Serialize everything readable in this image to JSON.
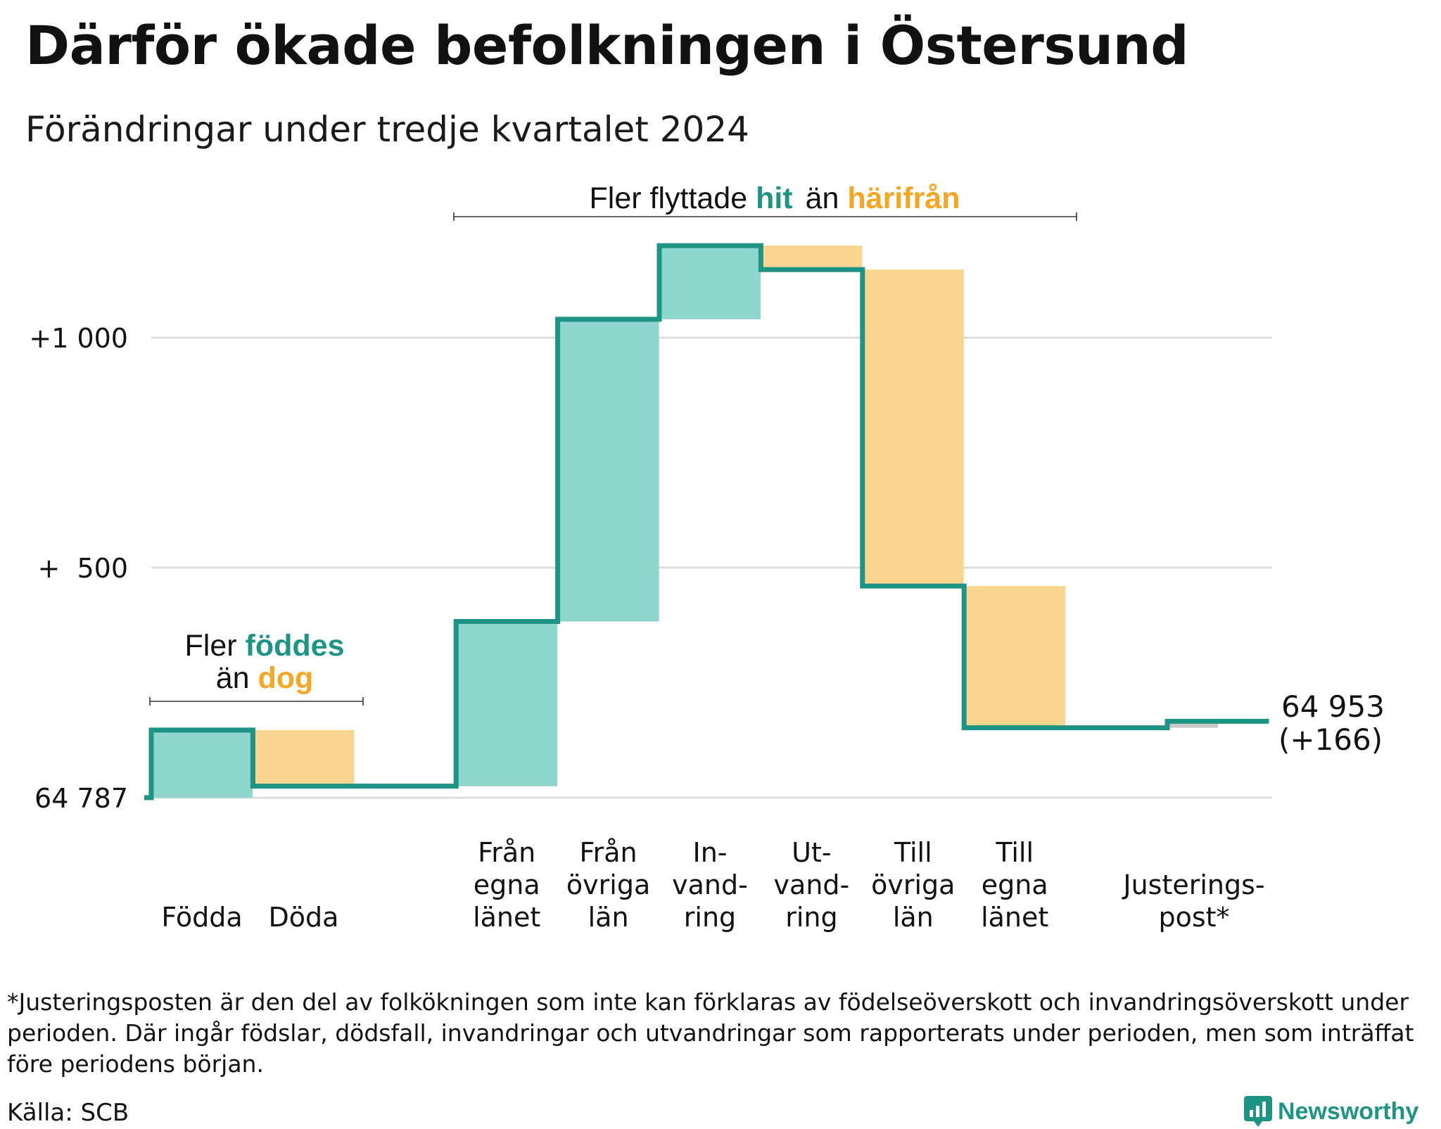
{
  "title": "Därför ökade befolkningen i Östersund",
  "subtitle": "Förändringar under tredje kvartalet 2024",
  "colors": {
    "increase": "#8dd5cd",
    "decrease": "#fad58f",
    "adjustment": "#c8c8c8",
    "line": "#1e9484",
    "gridline": "#dddddd",
    "teal_text": "#1e9484",
    "orange_text": "#f5a623"
  },
  "annotations": {
    "births": {
      "line1_prefix": "Fler",
      "line1_em": "föddes",
      "line2_prefix": "än",
      "line2_em": "dog"
    },
    "migration": {
      "prefix": "Fler flyttade",
      "em1": "hit",
      "mid": "än",
      "em2": "härifrån"
    }
  },
  "end_label": {
    "value": "64 953",
    "change": "(+166)"
  },
  "footnote": "*Justeringsposten är den del av folkökningen som inte kan förklaras av födelseöverskott och invandringsöverskott under perioden. Där ingår födslar, dödsfall, invandringar och utvandringar som rapporterats under perioden, men som inträffat före periodens början.",
  "source": "Källa: SCB",
  "brand": "Newsworthy",
  "chart_data": {
    "type": "waterfall",
    "base_value": 64787,
    "y_ticks": [
      {
        "value": 0,
        "label": "64 787"
      },
      {
        "value": 500,
        "label": "+  500"
      },
      {
        "value": 1000,
        "label": "+1 000"
      }
    ],
    "ylim": [
      0,
      1200
    ],
    "grid": true,
    "steps": [
      {
        "label_lines": [
          "Födda"
        ],
        "start": 0,
        "end": 147,
        "kind": "increase"
      },
      {
        "label_lines": [
          "Döda"
        ],
        "start": 147,
        "end": 25,
        "kind": "decrease"
      },
      {
        "label_lines": [],
        "start": 25,
        "end": 25,
        "kind": "none"
      },
      {
        "label_lines": [
          "Från",
          "egna",
          "länet"
        ],
        "start": 25,
        "end": 383,
        "kind": "increase"
      },
      {
        "label_lines": [
          "Från",
          "övriga",
          "län"
        ],
        "start": 383,
        "end": 1040,
        "kind": "increase"
      },
      {
        "label_lines": [
          "In-",
          "vand-",
          "ring"
        ],
        "start": 1040,
        "end": 1200,
        "kind": "increase"
      },
      {
        "label_lines": [
          "Ut-",
          "vand-",
          "ring"
        ],
        "start": 1200,
        "end": 1148,
        "kind": "decrease"
      },
      {
        "label_lines": [
          "Till",
          "övriga",
          "län"
        ],
        "start": 1148,
        "end": 460,
        "kind": "decrease"
      },
      {
        "label_lines": [
          "Till",
          "egna",
          "länet"
        ],
        "start": 460,
        "end": 152,
        "kind": "decrease"
      },
      {
        "label_lines": [],
        "start": 152,
        "end": 152,
        "kind": "none"
      },
      {
        "label_lines": [
          "Justerings-",
          "post*"
        ],
        "start": 152,
        "end": 166,
        "kind": "adjustment"
      }
    ],
    "final_value": 64953,
    "final_change": 166
  }
}
